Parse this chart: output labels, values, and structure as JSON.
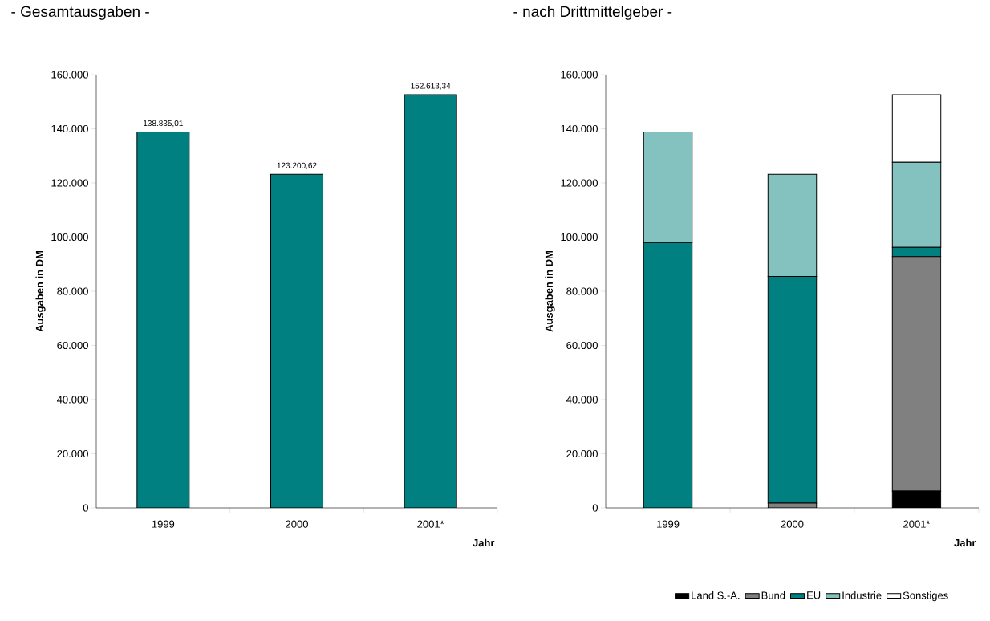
{
  "chart_data": [
    {
      "type": "bar",
      "title": "- Gesamtausgaben -",
      "ylabel": "Ausgaben in DM",
      "xlabel": "Jahr",
      "categories": [
        "1999",
        "2000",
        "2001*"
      ],
      "values": [
        138835.01,
        123200.62,
        152613.34
      ],
      "color": "#008080",
      "value_labels": [
        "138.835,01",
        "123.200,62",
        "152.613,34"
      ],
      "ylim": [
        0,
        160000
      ],
      "yticks": [
        {
          "value": 0,
          "label": "0"
        },
        {
          "value": 20000,
          "label": "20.000"
        },
        {
          "value": 40000,
          "label": "40.000"
        },
        {
          "value": 60000,
          "label": "60.000"
        },
        {
          "value": 80000,
          "label": "80.000"
        },
        {
          "value": 100000,
          "label": "100.000"
        },
        {
          "value": 120000,
          "label": "120.000"
        },
        {
          "value": 140000,
          "label": "140.000"
        },
        {
          "value": 160000,
          "label": "160.000"
        }
      ]
    },
    {
      "type": "bar",
      "title": "- nach Drittmittelgeber -",
      "ylabel": "Ausgaben in DM",
      "xlabel": "Jahr",
      "stacked": true,
      "legend": "bottom",
      "categories": [
        "1999",
        "2000",
        "2001*"
      ],
      "series": [
        {
          "name": "Land S.-A.",
          "color": "#000000",
          "values": [
            0,
            0,
            6200
          ]
        },
        {
          "name": "Bund",
          "color": "#808080",
          "values": [
            0,
            1800,
            86600
          ]
        },
        {
          "name": "EU",
          "color": "#008080",
          "values": [
            98000,
            83700,
            3400
          ]
        },
        {
          "name": "Industrie",
          "color": "#84c2c0",
          "values": [
            40800,
            37700,
            31400
          ]
        },
        {
          "name": "Sonstiges",
          "color": "#ffffff",
          "values": [
            0,
            0,
            25000
          ]
        }
      ],
      "ylim": [
        0,
        160000
      ],
      "yticks": [
        {
          "value": 0,
          "label": "0"
        },
        {
          "value": 20000,
          "label": "20.000"
        },
        {
          "value": 40000,
          "label": "40.000"
        },
        {
          "value": 60000,
          "label": "60.000"
        },
        {
          "value": 80000,
          "label": "80.000"
        },
        {
          "value": 100000,
          "label": "100.000"
        },
        {
          "value": 120000,
          "label": "120.000"
        },
        {
          "value": 140000,
          "label": "140.000"
        },
        {
          "value": 160000,
          "label": "160.000"
        }
      ]
    }
  ]
}
